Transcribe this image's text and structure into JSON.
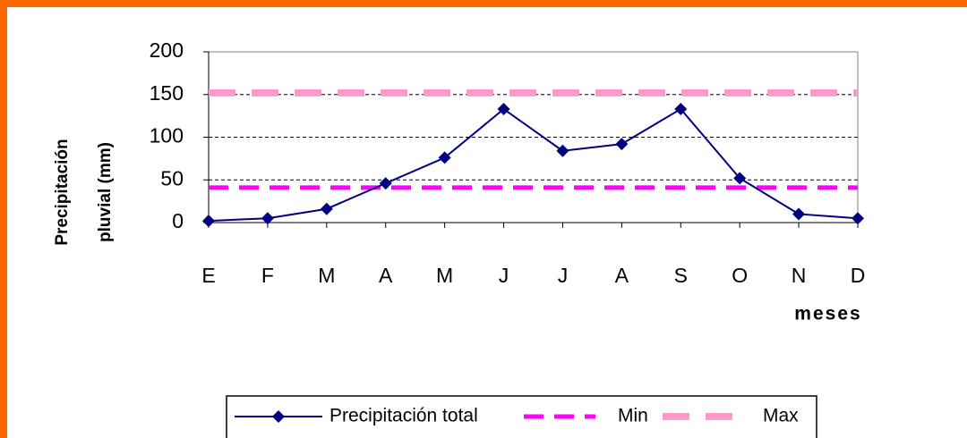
{
  "chart_data": {
    "type": "line",
    "y_label": [
      "Precipitación",
      "pluvial (mm)"
    ],
    "x_label": "meses",
    "categories": [
      "E",
      "F",
      "M",
      "A",
      "M",
      "J",
      "J",
      "A",
      "S",
      "O",
      "N",
      "D"
    ],
    "series": [
      {
        "name": "Precipitación total",
        "color": "#000080",
        "values": [
          2,
          5,
          16,
          46,
          76,
          133,
          84,
          92,
          133,
          52,
          10,
          5
        ]
      },
      {
        "name": "Min",
        "color": "#ff00ff",
        "values": [
          41,
          41,
          41,
          41,
          41,
          41,
          41,
          41,
          41,
          41,
          41,
          41
        ]
      },
      {
        "name": "Max",
        "color": "#ff99cc",
        "values": [
          152,
          152,
          152,
          152,
          152,
          152,
          152,
          152,
          152,
          152,
          152,
          152
        ]
      }
    ],
    "ylim": [
      0,
      200
    ],
    "yticks": [
      0,
      50,
      100,
      150,
      200
    ],
    "grid": true
  }
}
